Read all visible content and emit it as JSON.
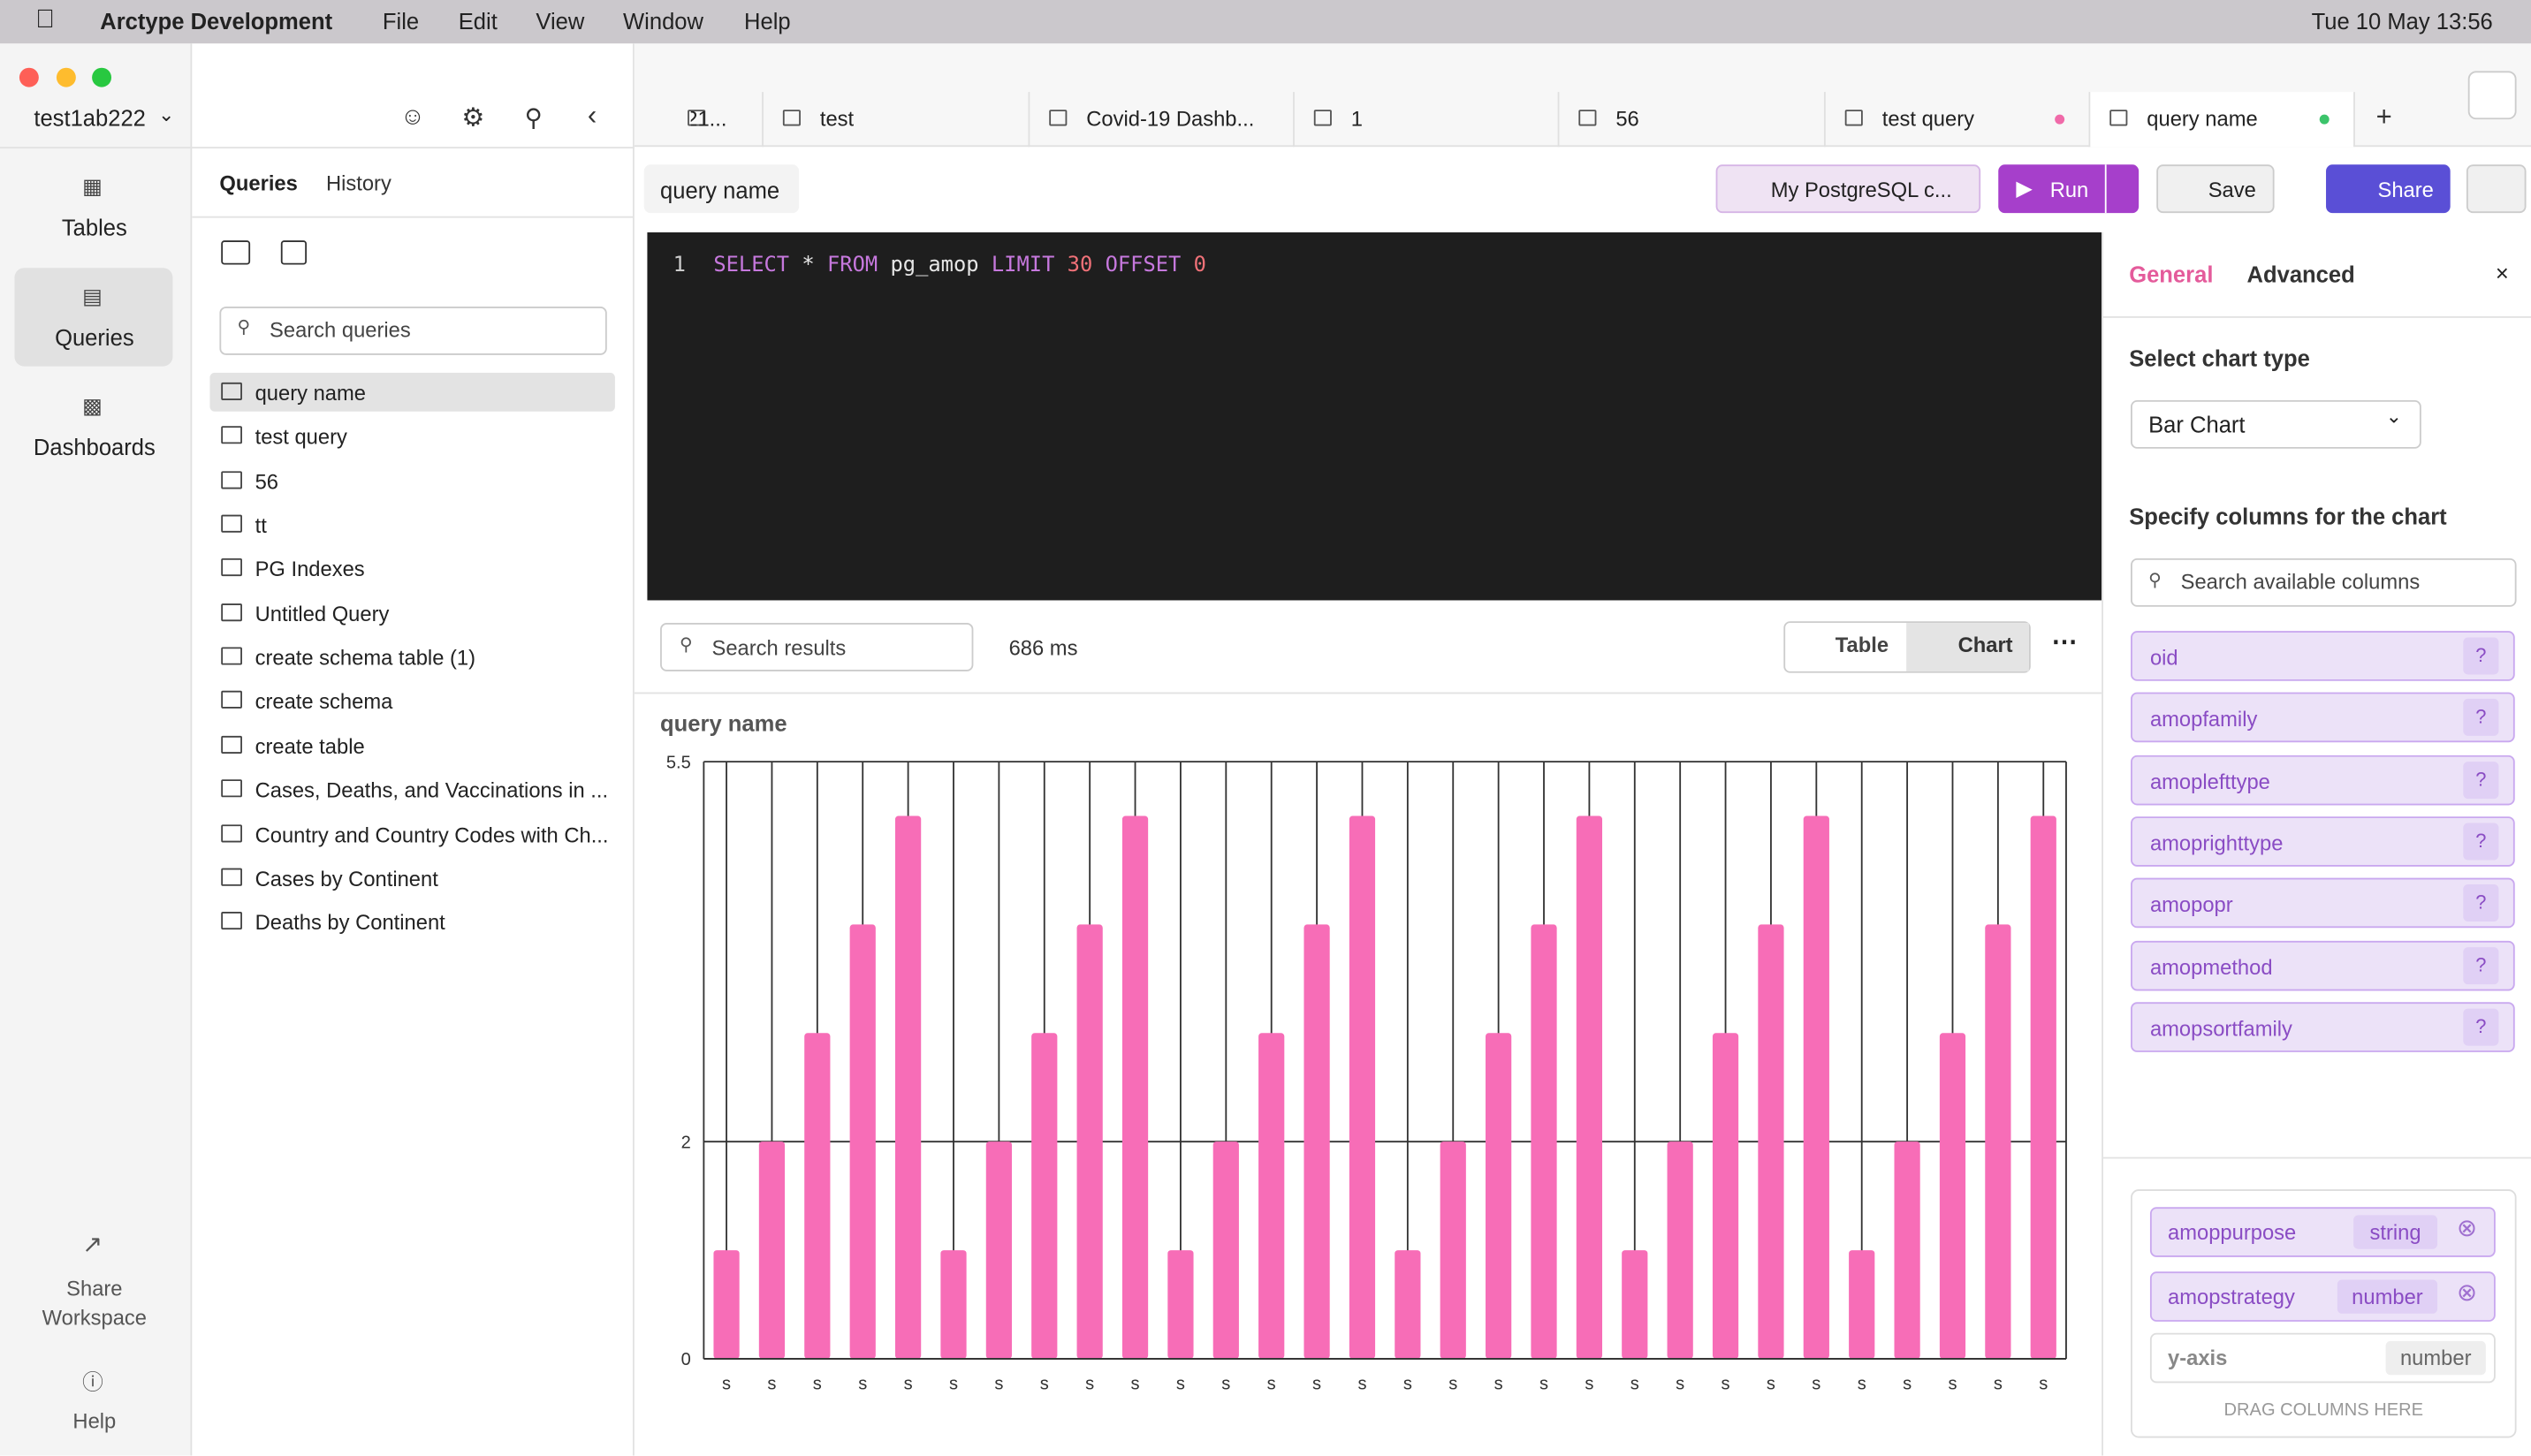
{
  "menu_bar": {
    "app": "Arctype Development",
    "menus": [
      "File",
      "Edit",
      "View",
      "Window",
      "Help"
    ],
    "clock": "Tue 10 May  13:56"
  },
  "sidebar": {
    "workspace": "test1ab222",
    "nav": [
      "Tables",
      "Queries",
      "Dashboards"
    ],
    "share": [
      "Share",
      "Workspace"
    ],
    "help": "Help"
  },
  "queries_panel": {
    "tabs": [
      "Queries",
      "History"
    ],
    "search": "Search queries",
    "items": [
      "query name",
      "test query",
      "56",
      "tt",
      "PG Indexes",
      "Untitled Query",
      "create schema table (1)",
      "create schema",
      "create table",
      "Cases, Deaths, and Vaccinations in ...",
      "Country and Country Codes with Ch...",
      "Cases by Continent",
      "Deaths by Continent"
    ]
  },
  "tabs": [
    "21...",
    "test",
    "Covid-19 Dashb...",
    "1",
    "56",
    "test query",
    "query name"
  ],
  "toolbar": {
    "query_name": "query name",
    "connection": "My PostgreSQL c...",
    "run": "Run",
    "save": "Save",
    "share": "Share"
  },
  "editor": {
    "line": "1",
    "tokens": [
      "SELECT",
      "*",
      "FROM",
      "pg_amop",
      "LIMIT",
      "30",
      "OFFSET",
      "0"
    ]
  },
  "results": {
    "search": "Search results",
    "time": "686 ms",
    "views": [
      "Table",
      "Chart"
    ]
  },
  "chart_data": {
    "type": "bar",
    "title": "query name",
    "categories": [
      "s",
      "s",
      "s",
      "s",
      "s",
      "s",
      "s",
      "s",
      "s",
      "s",
      "s",
      "s",
      "s",
      "s",
      "s",
      "s",
      "s",
      "s",
      "s",
      "s",
      "s",
      "s",
      "s",
      "s",
      "s",
      "s",
      "s",
      "s",
      "s",
      "s"
    ],
    "values": [
      1,
      2,
      3,
      4,
      5,
      1,
      2,
      3,
      4,
      5,
      1,
      2,
      3,
      4,
      5,
      1,
      2,
      3,
      4,
      5,
      1,
      2,
      3,
      4,
      5,
      1,
      2,
      3,
      4,
      5
    ],
    "color": "#f76db7",
    "ylim": [
      0,
      5.5
    ],
    "yticks": [
      0,
      2,
      5.5
    ],
    "grid": true
  },
  "config": {
    "tabs": [
      "General",
      "Advanced"
    ],
    "chart_type_label": "Select chart type",
    "chart_type": "Bar Chart",
    "columns_label": "Specify columns for the chart",
    "search": "Search available columns",
    "columns": [
      "oid",
      "amopfamily",
      "amoplefttype",
      "amoprighttype",
      "amopopr",
      "amopmethod",
      "amopsortfamily"
    ],
    "help_mark": "?",
    "selected": [
      {
        "name": "amoppurpose",
        "type": "string"
      },
      {
        "name": "amopstrategy",
        "type": "number"
      }
    ],
    "y_axis": {
      "name": "y-axis",
      "type": "number"
    },
    "drop_hint": "DRAG COLUMNS HERE"
  }
}
